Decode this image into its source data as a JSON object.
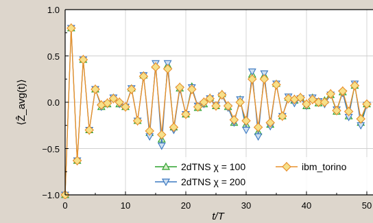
{
  "chart_data": {
    "type": "line",
    "xlabel": "t/T",
    "ylabel": "⟨Ẑ_avg(t)⟩",
    "xlim": [
      0,
      50
    ],
    "ylim": [
      -1.0,
      1.0
    ],
    "x_ticks": [
      "0",
      "10",
      "20",
      "30",
      "40",
      "50"
    ],
    "y_ticks": [
      "1.0",
      "0.5",
      "0.0",
      "−0.5",
      "−1.0"
    ],
    "grid": true,
    "legend": "bottom-right",
    "x": [
      0,
      1,
      2,
      3,
      4,
      5,
      6,
      7,
      8,
      9,
      10,
      11,
      12,
      13,
      14,
      15,
      16,
      17,
      18,
      19,
      20,
      21,
      22,
      23,
      24,
      25,
      26,
      27,
      28,
      29,
      30,
      31,
      32,
      33,
      34,
      35,
      36,
      37,
      38,
      39,
      40,
      41,
      42,
      43,
      44,
      45,
      46,
      47,
      48,
      49,
      50
    ],
    "series": [
      {
        "name": "2dTNS χ = 100",
        "color": "#2ca02c",
        "marker": "triangle-up",
        "values": [
          -1.0,
          0.8,
          -0.63,
          0.46,
          -0.3,
          0.14,
          -0.05,
          -0.02,
          0.05,
          -0.02,
          -0.05,
          0.15,
          -0.2,
          0.29,
          -0.33,
          0.4,
          -0.4,
          0.4,
          -0.27,
          0.15,
          -0.13,
          0.17,
          -0.06,
          -0.02,
          0.05,
          -0.04,
          0.09,
          -0.05,
          -0.22,
          0.03,
          -0.24,
          0.3,
          -0.32,
          0.29,
          -0.24,
          0.2,
          -0.15,
          0.05,
          0.02,
          0.05,
          -0.04,
          0.05,
          -0.01,
          0.02,
          0.08,
          -0.1,
          0.11,
          -0.15,
          0.18,
          -0.22,
          -0.02
        ]
      },
      {
        "name": "2dTNS χ = 200",
        "color": "#3a78c0",
        "marker": "triangle-down",
        "values": [
          -1.0,
          0.8,
          -0.63,
          0.46,
          -0.3,
          0.14,
          -0.05,
          -0.02,
          0.05,
          -0.02,
          -0.05,
          0.15,
          -0.2,
          0.29,
          -0.37,
          0.42,
          -0.47,
          0.42,
          -0.3,
          0.14,
          -0.13,
          0.16,
          -0.04,
          -0.02,
          0.04,
          -0.03,
          0.07,
          -0.06,
          -0.22,
          0.03,
          -0.3,
          0.33,
          -0.37,
          0.31,
          -0.26,
          0.2,
          -0.15,
          0.06,
          -0.01,
          0.04,
          -0.04,
          0.05,
          0.01,
          -0.02,
          0.08,
          -0.08,
          0.1,
          -0.16,
          0.2,
          -0.25,
          -0.03
        ]
      },
      {
        "name": "ibm_torino",
        "color": "#e8902c",
        "marker": "diamond",
        "errorbars": true,
        "values": [
          -1.0,
          0.8,
          -0.63,
          0.46,
          -0.3,
          0.14,
          -0.03,
          -0.01,
          0.04,
          0.0,
          -0.05,
          0.14,
          -0.2,
          0.28,
          -0.31,
          0.38,
          -0.35,
          0.36,
          -0.27,
          0.16,
          -0.13,
          0.14,
          -0.05,
          0.0,
          0.04,
          -0.04,
          0.08,
          -0.04,
          -0.19,
          0.0,
          -0.2,
          0.25,
          -0.27,
          0.25,
          -0.22,
          0.19,
          -0.15,
          0.04,
          0.03,
          0.05,
          -0.02,
          0.03,
          0.0,
          0.0,
          0.09,
          -0.09,
          0.12,
          -0.1,
          0.18,
          -0.18,
          -0.02
        ]
      }
    ]
  }
}
